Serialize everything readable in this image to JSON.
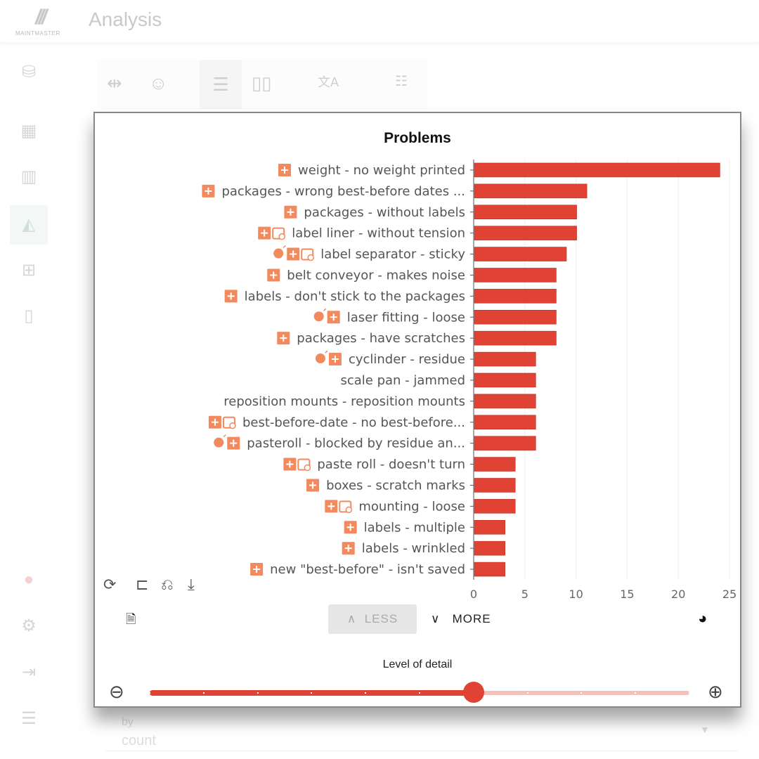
{
  "app": {
    "title": "Analysis",
    "logo_text": "MAINTMASTER"
  },
  "sidebar": {
    "icons": [
      "database-icon",
      "dashboard-icon",
      "board-icon",
      "analysis-icon",
      "add-note-icon",
      "notebook-icon",
      "alert-icon",
      "gear-icon",
      "logout-icon",
      "list-icon"
    ],
    "active": "analysis-icon"
  },
  "toolbar": {
    "icons": [
      "compress-icon",
      "smiley-icon",
      "rows-layout-icon",
      "columns-layout-icon",
      "translate-icon",
      "clear-filter-icon"
    ]
  },
  "background": {
    "by_label": "by",
    "count_label": "count"
  },
  "panel": {
    "title": "Problems",
    "less_label": "LESS",
    "more_label": "MORE",
    "level_of_detail_label": "Level of detail",
    "level_of_detail": {
      "value": 6,
      "min": 0,
      "max": 10
    },
    "accent": "#e04234",
    "icon_color": "#f28a5e"
  },
  "chart_data": {
    "type": "bar",
    "orientation": "horizontal",
    "title": "Problems",
    "xlim": [
      0,
      25
    ],
    "xticks": [
      0,
      5,
      10,
      15,
      20,
      25
    ],
    "grid": true,
    "color": "#e04234",
    "categories": [
      {
        "label": "weight - no weight printed",
        "icons": [
          "plus"
        ]
      },
      {
        "label": "packages - wrong best-before dates ...",
        "icons": [
          "plus"
        ]
      },
      {
        "label": "packages - without labels",
        "icons": [
          "plus"
        ]
      },
      {
        "label": "label liner - without tension",
        "icons": [
          "plus",
          "calendar"
        ]
      },
      {
        "label": "label separator - sticky",
        "icons": [
          "bulb",
          "plus",
          "calendar"
        ]
      },
      {
        "label": "belt conveyor - makes noise",
        "icons": [
          "plus"
        ]
      },
      {
        "label": "labels - don't stick to the packages",
        "icons": [
          "plus"
        ]
      },
      {
        "label": "laser fitting - loose",
        "icons": [
          "bulb",
          "plus"
        ]
      },
      {
        "label": "packages - have scratches",
        "icons": [
          "plus"
        ]
      },
      {
        "label": "cyclinder - residue",
        "icons": [
          "bulb",
          "plus"
        ]
      },
      {
        "label": "scale pan - jammed",
        "icons": []
      },
      {
        "label": "reposition mounts - reposition mounts",
        "icons": []
      },
      {
        "label": "best-before-date - no best-before...",
        "icons": [
          "plus",
          "calendar"
        ]
      },
      {
        "label": "pasteroll - blocked by residue an...",
        "icons": [
          "bulb",
          "plus"
        ]
      },
      {
        "label": "paste roll - doesn't turn",
        "icons": [
          "plus",
          "calendar"
        ]
      },
      {
        "label": "boxes - scratch marks",
        "icons": [
          "plus"
        ]
      },
      {
        "label": "mounting - loose",
        "icons": [
          "plus",
          "calendar"
        ]
      },
      {
        "label": "labels - multiple",
        "icons": [
          "plus"
        ]
      },
      {
        "label": "labels - wrinkled",
        "icons": [
          "plus"
        ]
      },
      {
        "label": "new \"best-before\" - isn't saved",
        "icons": [
          "plus"
        ]
      }
    ],
    "values": [
      24,
      11,
      10,
      10,
      9,
      8,
      8,
      8,
      8,
      6,
      6,
      6,
      6,
      6,
      4,
      4,
      4,
      3,
      3,
      3
    ]
  }
}
